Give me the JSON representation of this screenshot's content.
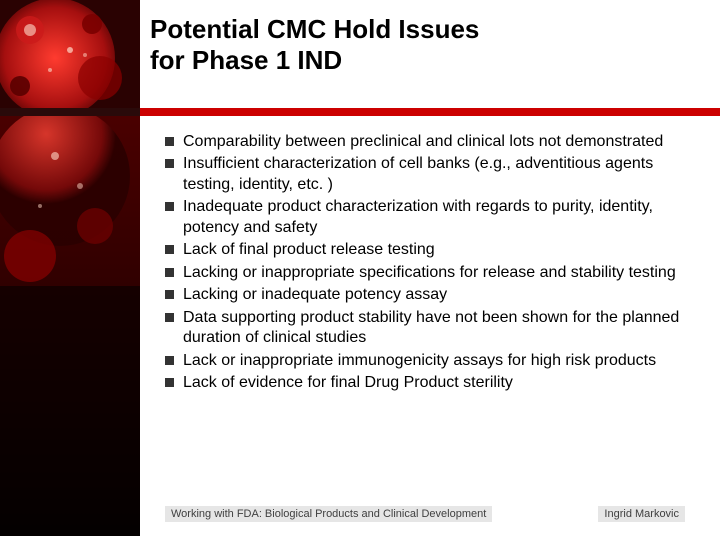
{
  "colors": {
    "title": "#000000",
    "body": "#000000",
    "bullet": "#333333",
    "rule_dark": "#2a0a0a",
    "rule_red": "#cc0000",
    "footer_bg": "#e6e6e6",
    "footer_text": "#404040",
    "side_bg_top": "#4a0000",
    "side_bg_bottom": "#120000",
    "circle_outer": "#cc1a1a",
    "circle_inner": "#8a0000",
    "glow": "#ffddcc"
  },
  "fonts": {
    "title_size": "26px",
    "body_size": "16px",
    "footer_size": "11px"
  },
  "title_line1": "Potential CMC Hold Issues",
  "title_line2": "for Phase 1 IND",
  "bullets": [
    "Comparability between preclinical and clinical lots not demonstrated",
    "Insufficient characterization of cell banks (e.g., adventitious agents testing, identity, etc. )",
    "Inadequate product characterization with regards to purity, identity, potency and safety",
    "Lack of final product release testing",
    "Lacking or inappropriate specifications for release and stability testing",
    "Lacking or inadequate potency assay",
    "Data supporting product stability have not been shown for the planned duration of clinical studies",
    "Lack or inappropriate immunogenicity assays for high risk products",
    "Lack of evidence for final Drug Product sterility"
  ],
  "footer_left": "Working with FDA: Biological Products and Clinical Development",
  "footer_right": "Ingrid Markovic"
}
